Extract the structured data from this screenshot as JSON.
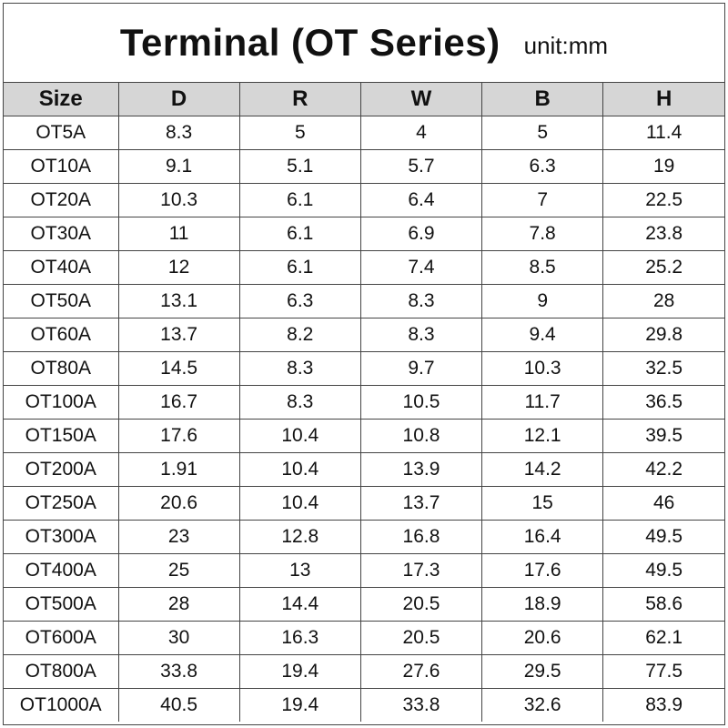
{
  "header": {
    "title": "Terminal (OT Series)",
    "unit": "unit:mm"
  },
  "table": {
    "columns": [
      "Size",
      "D",
      "R",
      "W",
      "B",
      "H"
    ],
    "rows": [
      [
        "OT5A",
        "8.3",
        "5",
        "4",
        "5",
        "11.4"
      ],
      [
        "OT10A",
        "9.1",
        "5.1",
        "5.7",
        "6.3",
        "19"
      ],
      [
        "OT20A",
        "10.3",
        "6.1",
        "6.4",
        "7",
        "22.5"
      ],
      [
        "OT30A",
        "11",
        "6.1",
        "6.9",
        "7.8",
        "23.8"
      ],
      [
        "OT40A",
        "12",
        "6.1",
        "7.4",
        "8.5",
        "25.2"
      ],
      [
        "OT50A",
        "13.1",
        "6.3",
        "8.3",
        "9",
        "28"
      ],
      [
        "OT60A",
        "13.7",
        "8.2",
        "8.3",
        "9.4",
        "29.8"
      ],
      [
        "OT80A",
        "14.5",
        "8.3",
        "9.7",
        "10.3",
        "32.5"
      ],
      [
        "OT100A",
        "16.7",
        "8.3",
        "10.5",
        "11.7",
        "36.5"
      ],
      [
        "OT150A",
        "17.6",
        "10.4",
        "10.8",
        "12.1",
        "39.5"
      ],
      [
        "OT200A",
        "1.91",
        "10.4",
        "13.9",
        "14.2",
        "42.2"
      ],
      [
        "OT250A",
        "20.6",
        "10.4",
        "13.7",
        "15",
        "46"
      ],
      [
        "OT300A",
        "23",
        "12.8",
        "16.8",
        "16.4",
        "49.5"
      ],
      [
        "OT400A",
        "25",
        "13",
        "17.3",
        "17.6",
        "49.5"
      ],
      [
        "OT500A",
        "28",
        "14.4",
        "20.5",
        "18.9",
        "58.6"
      ],
      [
        "OT600A",
        "30",
        "16.3",
        "20.5",
        "20.6",
        "62.1"
      ],
      [
        "OT800A",
        "33.8",
        "19.4",
        "27.6",
        "29.5",
        "77.5"
      ],
      [
        "OT1000A",
        "40.5",
        "19.4",
        "33.8",
        "32.6",
        "83.9"
      ]
    ]
  },
  "colors": {
    "header_bg": "#d6d6d6",
    "border": "#444444",
    "text": "#111111"
  }
}
